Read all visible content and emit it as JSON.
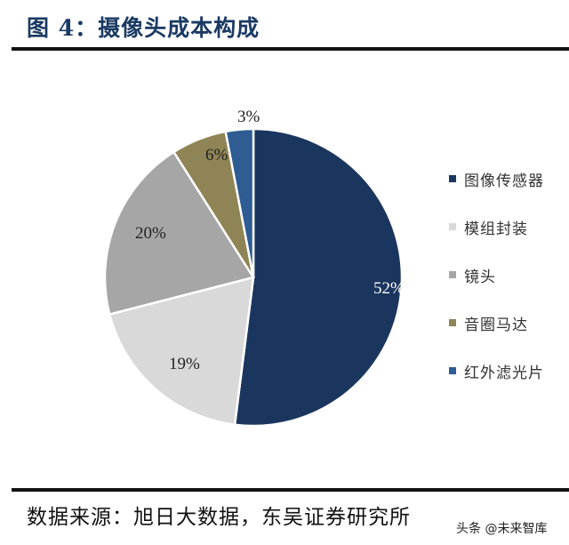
{
  "header": {
    "title": "图 4：摄像头成本构成"
  },
  "footer": {
    "source": "数据来源：旭日大数据，东吴证券研究所",
    "watermark": "头条 @未来智库"
  },
  "chart_data": {
    "type": "pie",
    "title": "图 4：摄像头成本构成",
    "categories": [
      "图像传感器",
      "模组封装",
      "镜头",
      "音圈马达",
      "红外滤光片"
    ],
    "values": [
      52,
      19,
      20,
      6,
      3
    ],
    "labels": [
      "52%",
      "19%",
      "20%",
      "6%",
      "3%"
    ],
    "colors": [
      "#1b365e",
      "#d9d9d9",
      "#a6a6a6",
      "#8f8455",
      "#2e5c93"
    ],
    "start_angle": "12 o'clock",
    "direction": "clockwise",
    "legend_position": "right",
    "source": "数据来源：旭日大数据，东吴证券研究所"
  }
}
